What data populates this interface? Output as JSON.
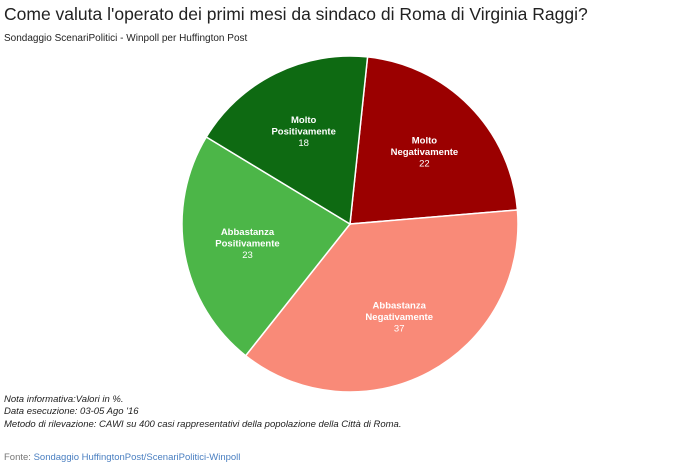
{
  "header": {
    "title": "Come valuta l'operato dei primi mesi da sindaco di Roma di Virginia Raggi?",
    "subtitle": "Sondaggio ScenariPolitici - Winpoll per Huffington Post"
  },
  "notes": [
    "Nota informativa:Valori in %.",
    "Data esecuzione: 03-05 Ago '16",
    "Metodo di rilevazione: CAWI su 400 casi rappresentativi della popolazione della Città di Roma."
  ],
  "footer": {
    "prefix": "Fonte:",
    "link_text": "Sondaggio HuffingtonPost/ScenariPolitici-Winpoll"
  },
  "chart_data": {
    "type": "pie",
    "start": "top, clockwise",
    "slices": [
      {
        "label": [
          "Molto",
          "Negativamente"
        ],
        "value": 22,
        "color": "#9b0000"
      },
      {
        "label": [
          "Abbastanza",
          "Negativamente"
        ],
        "value": 37,
        "color": "#f98a78"
      },
      {
        "label": [
          "Abbastanza",
          "Positivamente"
        ],
        "value": 23,
        "color": "#4cb648"
      },
      {
        "label": [
          "Molto",
          "Positivamente"
        ],
        "value": 18,
        "color": "#0e6a12"
      }
    ]
  }
}
